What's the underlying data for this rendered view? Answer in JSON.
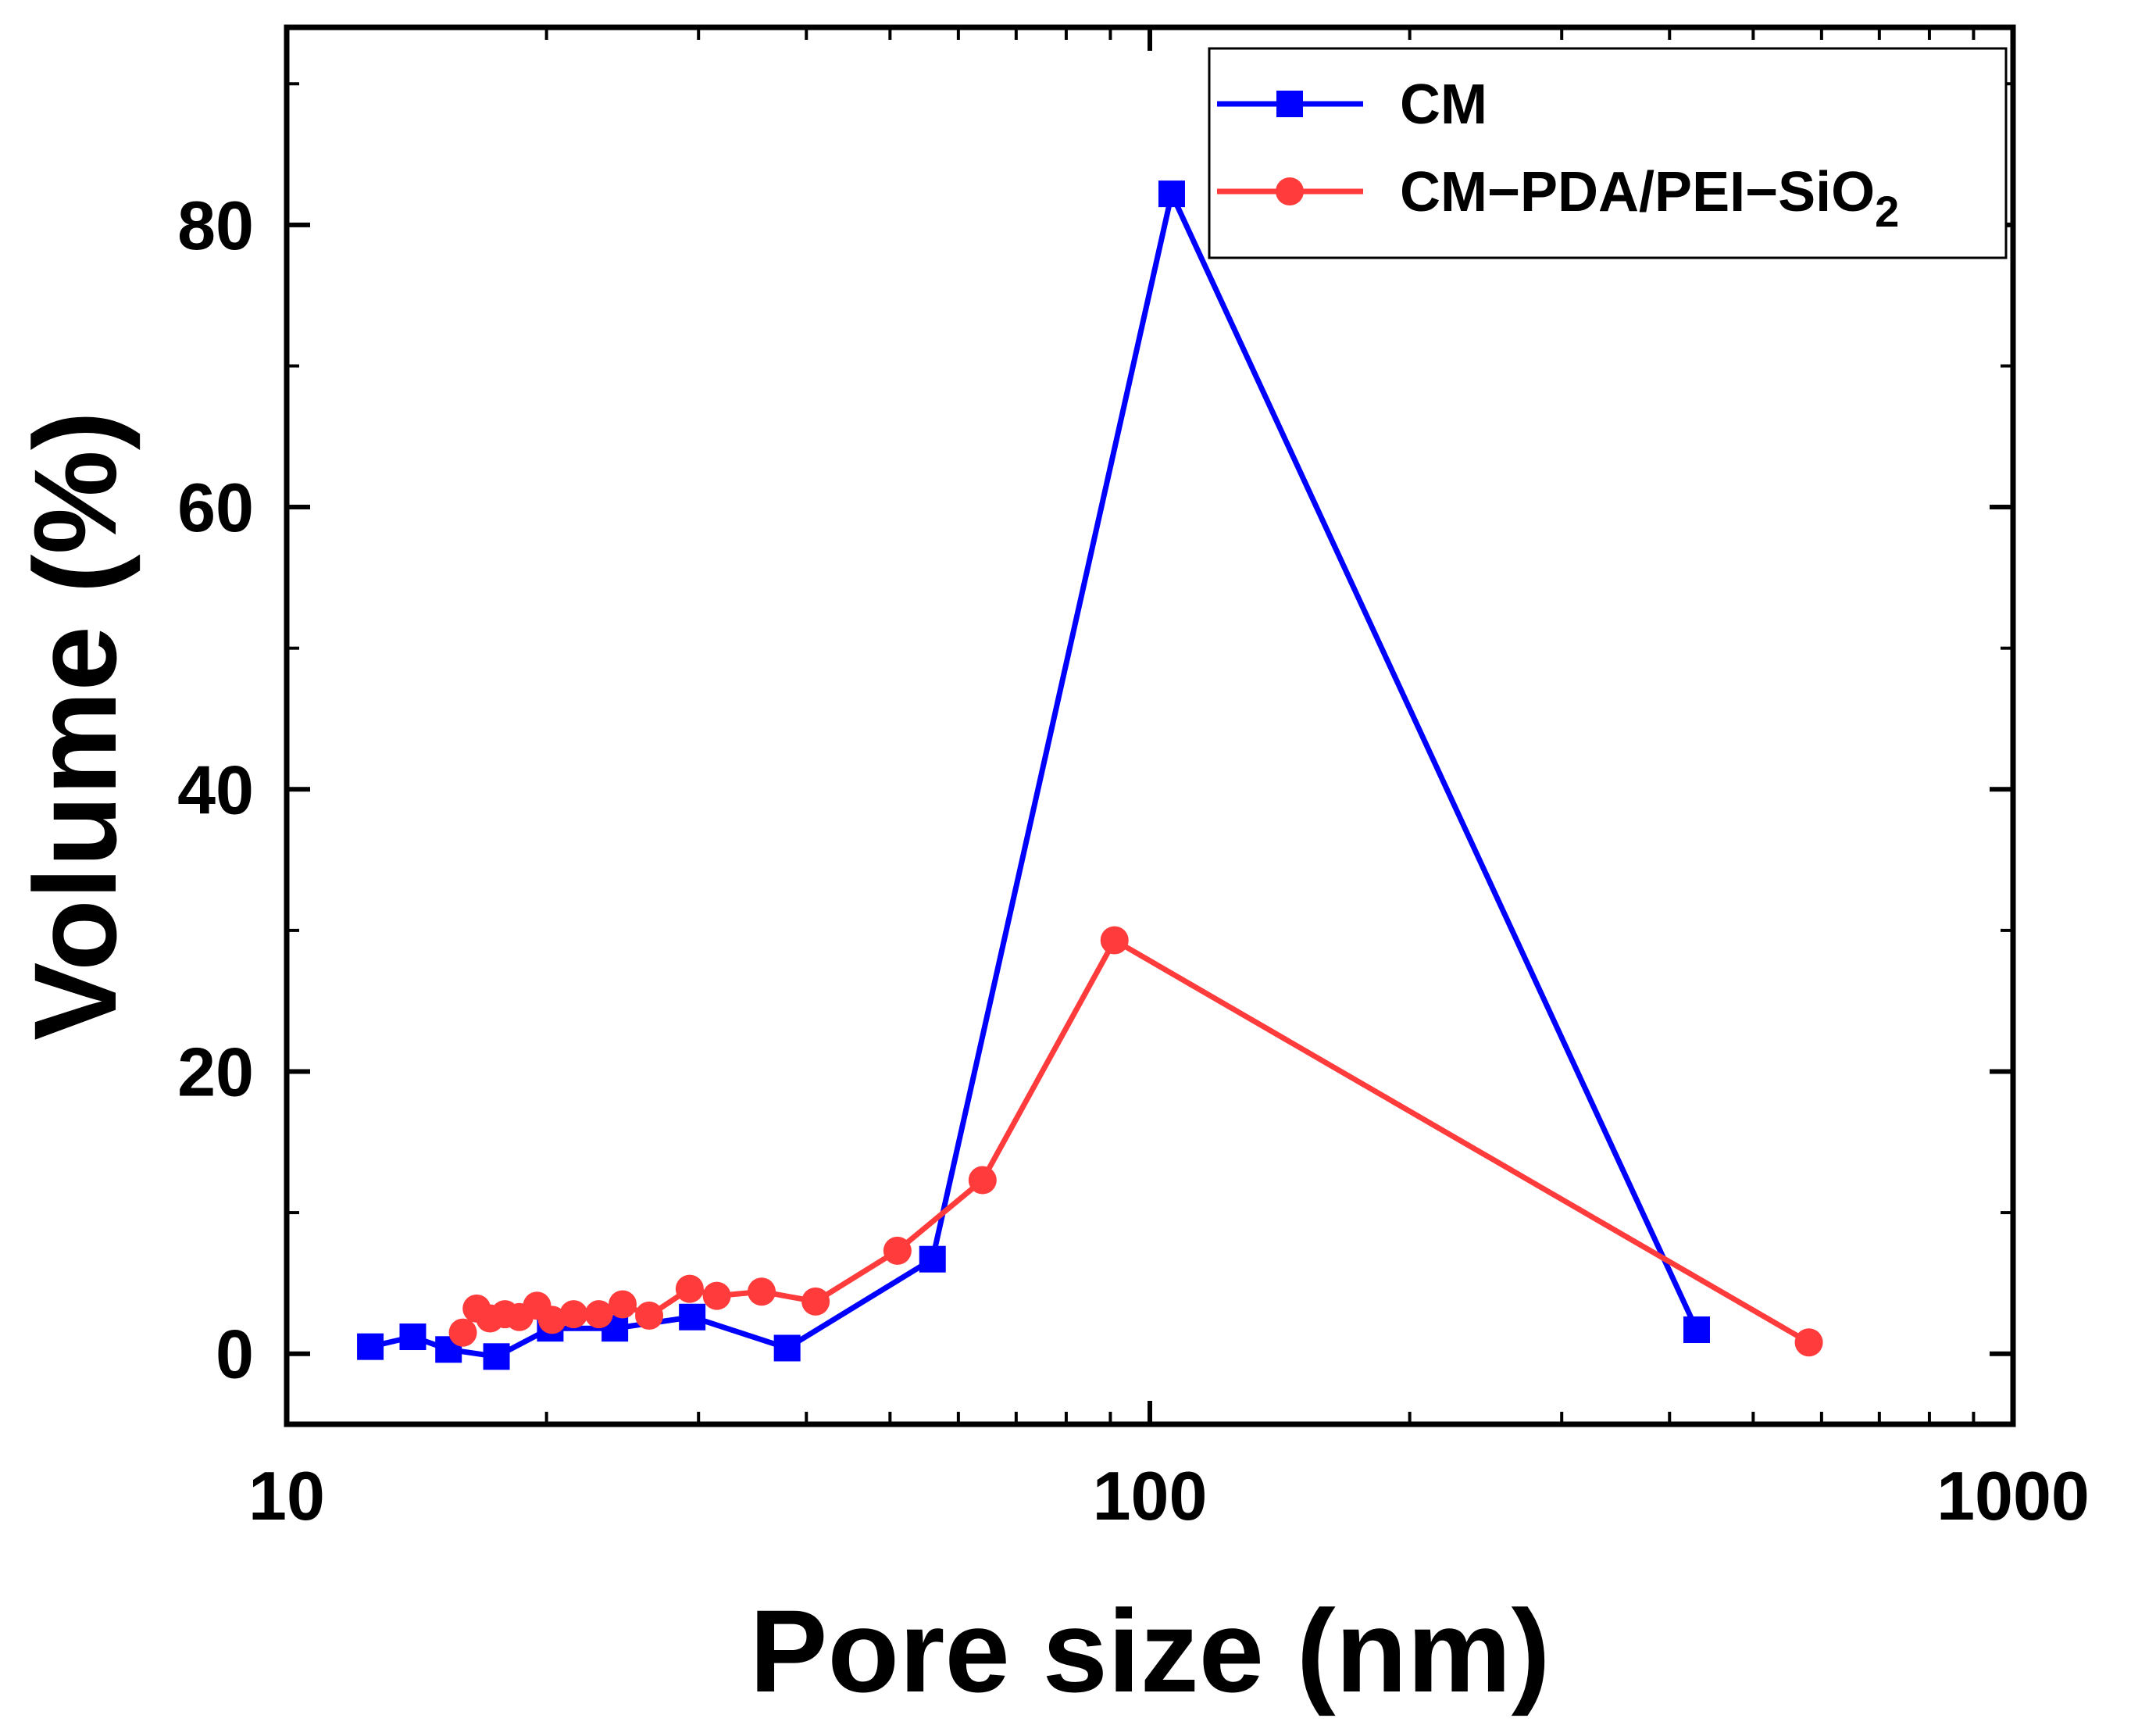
{
  "chart_data": {
    "type": "line",
    "xlabel": "Pore size (nm)",
    "ylabel": "Volume (%)",
    "xscale": "log",
    "xlim": [
      10,
      1000
    ],
    "ylim": [
      -5,
      94
    ],
    "x_ticks": [
      10,
      100,
      1000
    ],
    "x_tick_labels": [
      "10",
      "100",
      "1000"
    ],
    "y_ticks": [
      0,
      20,
      40,
      60,
      80
    ],
    "y_tick_labels": [
      "0",
      "20",
      "40",
      "60",
      "80"
    ],
    "legend_position": "top-right",
    "grid": false,
    "series": [
      {
        "name": "CM",
        "name_main": "CM",
        "name_sub": "",
        "color": "#0000ff",
        "marker": "square",
        "x": [
          12.5,
          14.0,
          15.4,
          17.5,
          20.2,
          24.0,
          29.5,
          38.0,
          56.0,
          106.0,
          430.0
        ],
        "y": [
          0.5,
          1.2,
          0.3,
          -0.2,
          1.8,
          1.8,
          2.6,
          0.4,
          6.7,
          82.2,
          1.7
        ]
      },
      {
        "name": "CM−PDA/PEI−SiO2",
        "name_main": "CM−PDA/PEI−SiO",
        "name_sub": "2",
        "color": "#ff3b3b",
        "marker": "circle",
        "x": [
          16.0,
          16.6,
          17.2,
          17.9,
          18.6,
          19.5,
          20.3,
          21.5,
          23.0,
          24.5,
          26.3,
          29.3,
          31.5,
          35.5,
          41.0,
          51.0,
          64.0,
          91.0,
          580.0
        ],
        "y": [
          1.5,
          3.2,
          2.5,
          2.8,
          2.6,
          3.4,
          2.4,
          2.8,
          2.8,
          3.5,
          2.7,
          4.6,
          4.1,
          4.4,
          3.7,
          7.3,
          12.3,
          29.3,
          0.8
        ]
      }
    ]
  }
}
